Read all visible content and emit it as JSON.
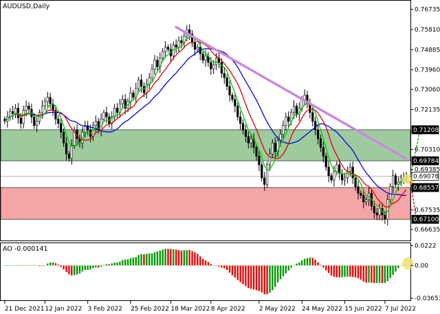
{
  "chart_data": [
    {
      "type": "candlestick",
      "title": "AUDUSD,Daily",
      "ylim": [
        0.6616,
        0.771
      ],
      "price_ticks": [
        {
          "value": 0.76735,
          "label": "0.76735"
        },
        {
          "value": 0.7581,
          "label": "0.75810"
        },
        {
          "value": 0.74885,
          "label": "0.74885"
        },
        {
          "value": 0.7396,
          "label": "0.73960"
        },
        {
          "value": 0.7306,
          "label": "0.73060"
        },
        {
          "value": 0.72135,
          "label": "0.72135"
        },
        {
          "value": 0.7031,
          "label": "0.70310"
        },
        {
          "value": 0.69385,
          "label": "0.69385"
        },
        {
          "value": 0.67535,
          "label": "0.67535"
        },
        {
          "value": 0.66635,
          "label": "0.66635"
        }
      ],
      "highlighted_levels": [
        {
          "value": 0.71208,
          "label": "0.71208",
          "style": "dark"
        },
        {
          "value": 0.69784,
          "label": "0.69784",
          "style": "dark"
        },
        {
          "value": 0.69078,
          "label": "0.69078",
          "style": "light"
        },
        {
          "value": 0.68557,
          "label": "0.68557",
          "style": "dark"
        },
        {
          "value": 0.671,
          "label": "0.67100",
          "style": "dark"
        }
      ],
      "zones": [
        {
          "name": "resistance",
          "from": 0.69784,
          "to": 0.71208,
          "color": "#9ecb9e"
        },
        {
          "name": "support",
          "from": 0.671,
          "to": 0.68557,
          "color": "#f4a6a6"
        }
      ],
      "current_price": 0.69078,
      "x_labels": [
        "21 Dec 2021",
        "12 Jan 2022",
        "3 Feb 2022",
        "25 Feb 2022",
        "18 Mar 2022",
        "8 Apr 2022",
        "2 May 2022",
        "24 May 2022",
        "15 Jun 2022",
        "7 Jul 2022"
      ],
      "x_label_index": [
        0,
        15,
        31,
        47,
        62,
        77,
        95,
        111,
        127,
        142
      ],
      "close": [
        0.716,
        0.718,
        0.7205,
        0.7195,
        0.722,
        0.7175,
        0.715,
        0.721,
        0.723,
        0.7215,
        0.718,
        0.714,
        0.716,
        0.72,
        0.723,
        0.725,
        0.727,
        0.724,
        0.721,
        0.717,
        0.715,
        0.711,
        0.706,
        0.701,
        0.699,
        0.705,
        0.712,
        0.708,
        0.706,
        0.711,
        0.714,
        0.712,
        0.709,
        0.714,
        0.716,
        0.712,
        0.717,
        0.72,
        0.718,
        0.715,
        0.718,
        0.722,
        0.72,
        0.724,
        0.726,
        0.722,
        0.725,
        0.729,
        0.727,
        0.731,
        0.735,
        0.732,
        0.729,
        0.733,
        0.736,
        0.74,
        0.744,
        0.741,
        0.745,
        0.748,
        0.75,
        0.749,
        0.746,
        0.751,
        0.75,
        0.753,
        0.752,
        0.755,
        0.758,
        0.756,
        0.752,
        0.749,
        0.75,
        0.747,
        0.744,
        0.746,
        0.743,
        0.74,
        0.742,
        0.745,
        0.743,
        0.738,
        0.736,
        0.732,
        0.728,
        0.726,
        0.723,
        0.718,
        0.715,
        0.712,
        0.709,
        0.706,
        0.708,
        0.704,
        0.7,
        0.696,
        0.69,
        0.687,
        0.696,
        0.701,
        0.706,
        0.702,
        0.707,
        0.71,
        0.714,
        0.718,
        0.716,
        0.72,
        0.723,
        0.719,
        0.722,
        0.726,
        0.728,
        0.724,
        0.72,
        0.716,
        0.712,
        0.708,
        0.704,
        0.7,
        0.695,
        0.691,
        0.689,
        0.693,
        0.696,
        0.692,
        0.689,
        0.69,
        0.693,
        0.695,
        0.69,
        0.686,
        0.683,
        0.682,
        0.679,
        0.68,
        0.683,
        0.677,
        0.674,
        0.673,
        0.676,
        0.673,
        0.671,
        0.68,
        0.686,
        0.691,
        0.687,
        0.688,
        0.69,
        0.69,
        0.6908
      ],
      "ma_fast": {
        "period": 5,
        "color": "#00cc00"
      },
      "ma_mid": {
        "period": 10,
        "color": "#e00000"
      },
      "ma_slow": {
        "period": 20,
        "color": "#0000e0"
      },
      "trend_line": {
        "from": [
          64,
          0.7592
        ],
        "to": [
          150,
          0.6988
        ],
        "color": "#cc88dd"
      },
      "forecast": {
        "origin": [
          150,
          0.6893
        ],
        "up_target": 0.712,
        "down_target": 0.671,
        "up_color": "#2e8b2e",
        "down_color": "#e00000",
        "marker_color": "#f0e070"
      }
    },
    {
      "type": "bar",
      "title": "AO -0.000141",
      "indicator": "AO",
      "current_value": -0.000141,
      "ylim": [
        -0.0379,
        0.024
      ],
      "ticks": [
        {
          "value": 0.0222,
          "label": "0.0222"
        },
        {
          "value": 0.0,
          "label": "0.00"
        },
        {
          "value": -0.036533,
          "label": "-0.036533"
        }
      ],
      "up_color": "#009900",
      "down_color": "#ee0000",
      "marker_color": "#f0e070"
    }
  ]
}
